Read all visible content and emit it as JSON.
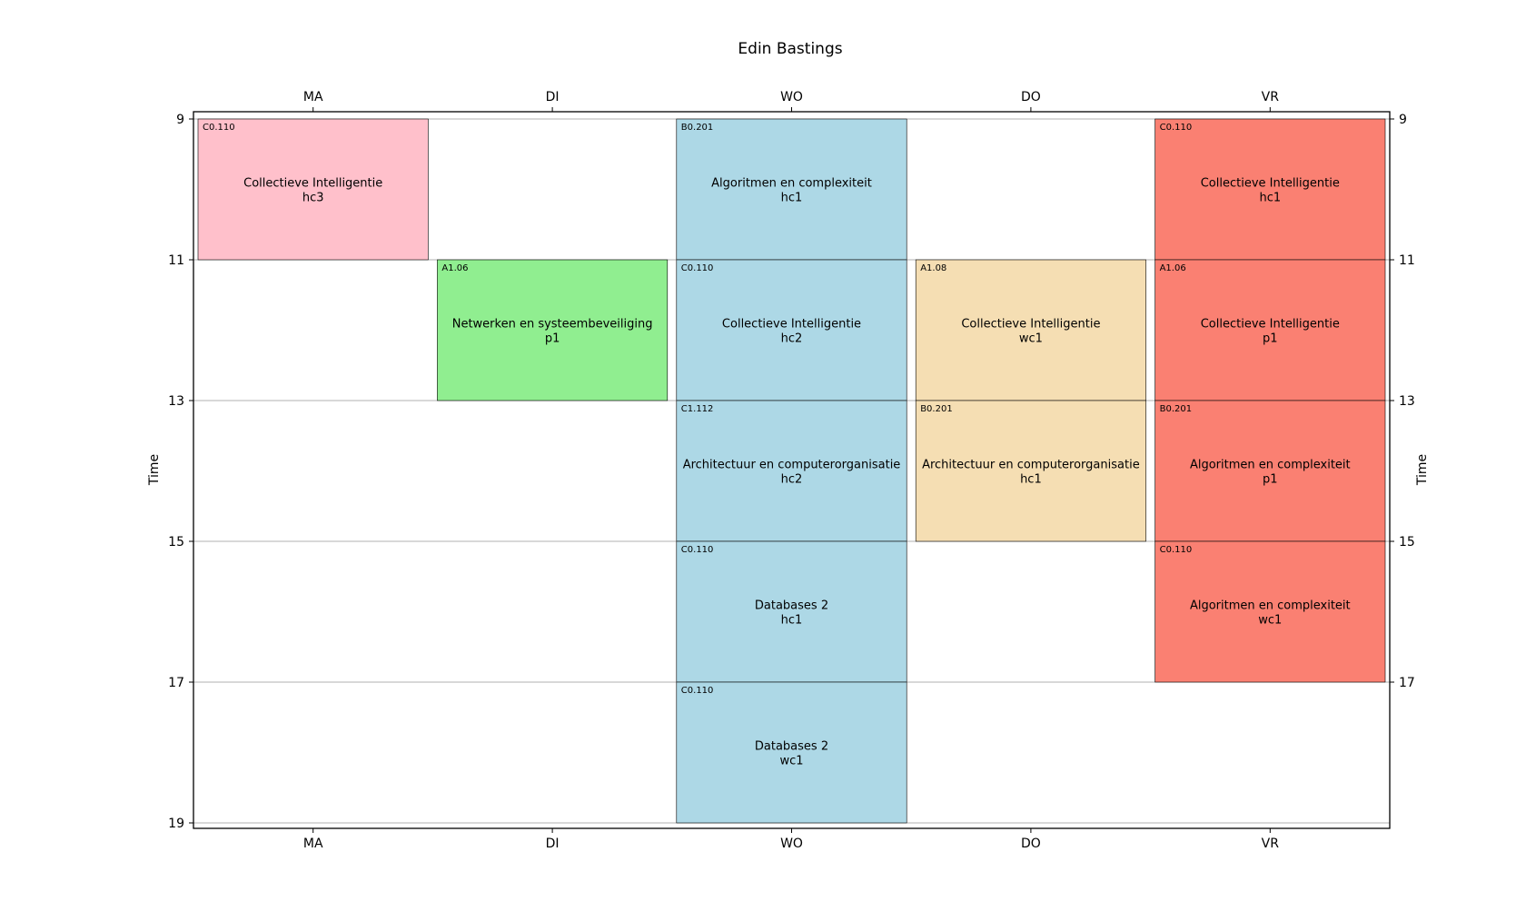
{
  "chart_data": {
    "type": "timetable",
    "title": "Edin Bastings",
    "days": [
      "MA",
      "DI",
      "WO",
      "DO",
      "VR"
    ],
    "ylabel_left": "Time",
    "ylabel_right": "Time",
    "y_ticks_left": [
      9,
      11,
      13,
      15,
      17,
      19
    ],
    "y_ticks_right": [
      9,
      11,
      13,
      15,
      17
    ],
    "ylim": [
      9,
      19
    ],
    "grid": true,
    "colors": {
      "MA": "#ffc0cb",
      "DI": "#90ee90",
      "WO": "#add8e6",
      "DO": "#f5deb3",
      "VR": "#fa8072"
    },
    "events": [
      {
        "day": "MA",
        "start": 9,
        "end": 11,
        "room": "C0.110",
        "course": "Collectieve Intelligentie",
        "group": "hc3"
      },
      {
        "day": "DI",
        "start": 11,
        "end": 13,
        "room": "A1.06",
        "course": "Netwerken en systeembeveiliging",
        "group": "p1"
      },
      {
        "day": "WO",
        "start": 9,
        "end": 11,
        "room": "B0.201",
        "course": "Algoritmen en complexiteit",
        "group": "hc1"
      },
      {
        "day": "WO",
        "start": 11,
        "end": 13,
        "room": "C0.110",
        "course": "Collectieve Intelligentie",
        "group": "hc2"
      },
      {
        "day": "WO",
        "start": 13,
        "end": 15,
        "room": "C1.112",
        "course": "Architectuur en computerorganisatie",
        "group": "hc2"
      },
      {
        "day": "WO",
        "start": 15,
        "end": 17,
        "room": "C0.110",
        "course": "Databases 2",
        "group": "hc1"
      },
      {
        "day": "WO",
        "start": 17,
        "end": 19,
        "room": "C0.110",
        "course": "Databases 2",
        "group": "wc1"
      },
      {
        "day": "DO",
        "start": 11,
        "end": 13,
        "room": "A1.08",
        "course": "Collectieve Intelligentie",
        "group": "wc1"
      },
      {
        "day": "DO",
        "start": 13,
        "end": 15,
        "room": "B0.201",
        "course": "Architectuur en computerorganisatie",
        "group": "hc1"
      },
      {
        "day": "VR",
        "start": 9,
        "end": 11,
        "room": "C0.110",
        "course": "Collectieve Intelligentie",
        "group": "hc1"
      },
      {
        "day": "VR",
        "start": 11,
        "end": 13,
        "room": "A1.06",
        "course": "Collectieve Intelligentie",
        "group": "p1"
      },
      {
        "day": "VR",
        "start": 13,
        "end": 15,
        "room": "B0.201",
        "course": "Algoritmen en complexiteit",
        "group": "p1"
      },
      {
        "day": "VR",
        "start": 15,
        "end": 17,
        "room": "C0.110",
        "course": "Algoritmen en complexiteit",
        "group": "wc1"
      }
    ]
  }
}
